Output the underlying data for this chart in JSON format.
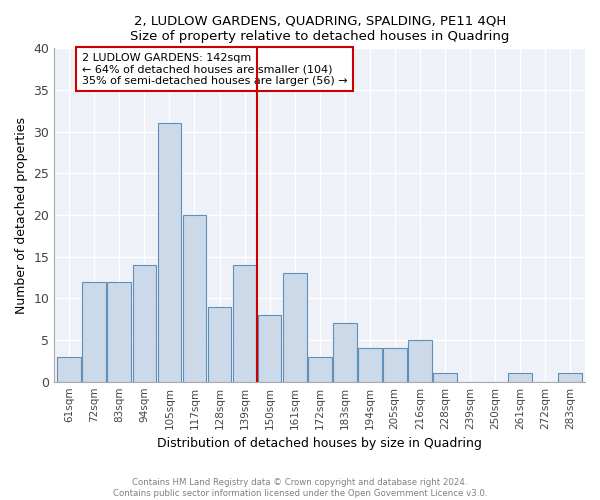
{
  "title1": "2, LUDLOW GARDENS, QUADRING, SPALDING, PE11 4QH",
  "title2": "Size of property relative to detached houses in Quadring",
  "xlabel": "Distribution of detached houses by size in Quadring",
  "ylabel": "Number of detached properties",
  "bar_color": "#ccd9e8",
  "bar_edge_color": "#6090b8",
  "bin_labels": [
    "61sqm",
    "72sqm",
    "83sqm",
    "94sqm",
    "105sqm",
    "117sqm",
    "128sqm",
    "139sqm",
    "150sqm",
    "161sqm",
    "172sqm",
    "183sqm",
    "194sqm",
    "205sqm",
    "216sqm",
    "228sqm",
    "239sqm",
    "250sqm",
    "261sqm",
    "272sqm",
    "283sqm"
  ],
  "bar_heights": [
    3,
    12,
    12,
    14,
    31,
    20,
    9,
    14,
    8,
    13,
    3,
    7,
    4,
    4,
    5,
    1,
    0,
    0,
    1,
    0,
    1
  ],
  "property_line_index": 7.5,
  "annotation_title": "2 LUDLOW GARDENS: 142sqm",
  "annotation_line1": "← 64% of detached houses are smaller (104)",
  "annotation_line2": "35% of semi-detached houses are larger (56) →",
  "line_color": "#cc0000",
  "annotation_box_edge": "#cc0000",
  "footer1": "Contains HM Land Registry data © Crown copyright and database right 2024.",
  "footer2": "Contains public sector information licensed under the Open Government Licence v3.0.",
  "ylim": [
    0,
    40
  ],
  "yticks": [
    0,
    5,
    10,
    15,
    20,
    25,
    30,
    35,
    40
  ],
  "bg_color": "#eef2f8"
}
